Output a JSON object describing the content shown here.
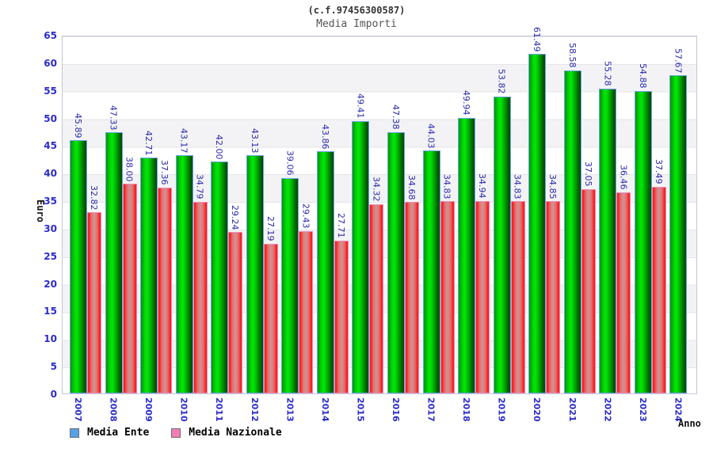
{
  "header": {
    "title_line1": "(c.f.97456300587)",
    "title_line2": "Media Importi"
  },
  "axes": {
    "y_label": "Euro",
    "x_label": "Anno"
  },
  "chart_data": {
    "type": "bar",
    "title": "Media Importi",
    "subtitle": "(c.f.97456300587)",
    "xlabel": "Anno",
    "ylabel": "Euro",
    "ylim": [
      0,
      65
    ],
    "y_ticks": [
      0,
      5,
      10,
      15,
      20,
      25,
      30,
      35,
      40,
      45,
      50,
      55,
      60,
      65
    ],
    "grid": "horizontal alternating bands every 5 units",
    "legend_position": "bottom-left",
    "value_label_style": "rotated 90deg, blue, two decimals",
    "categories": [
      "2007",
      "2008",
      "2009",
      "2010",
      "2011",
      "2012",
      "2013",
      "2014",
      "2015",
      "2016",
      "2017",
      "2018",
      "2019",
      "2020",
      "2021",
      "2022",
      "2023",
      "2024"
    ],
    "series": [
      {
        "name": "Media Ente",
        "bar_color": "#00cc00",
        "legend_color": "#58a1ea",
        "values": [
          45.89,
          47.33,
          42.71,
          43.17,
          42.0,
          43.13,
          39.06,
          43.86,
          49.41,
          47.38,
          44.03,
          49.94,
          53.82,
          61.49,
          58.58,
          55.28,
          54.88,
          57.67
        ]
      },
      {
        "name": "Media Nazionale",
        "bar_color": "#ee3333",
        "legend_color": "#f27fb2",
        "values": [
          32.82,
          38.0,
          37.36,
          34.79,
          29.24,
          27.19,
          29.43,
          27.71,
          34.32,
          34.68,
          34.83,
          34.94,
          34.83,
          34.85,
          37.05,
          36.46,
          37.49,
          null
        ]
      }
    ]
  },
  "colors": {
    "tick_label": "#2b2bce",
    "value_label": "#2a2ab0",
    "band_gray": "#f3f3f5",
    "gridline": "#e4e4ea",
    "ente_border": "#6fa4e6",
    "naz_border": "#f08cba"
  }
}
